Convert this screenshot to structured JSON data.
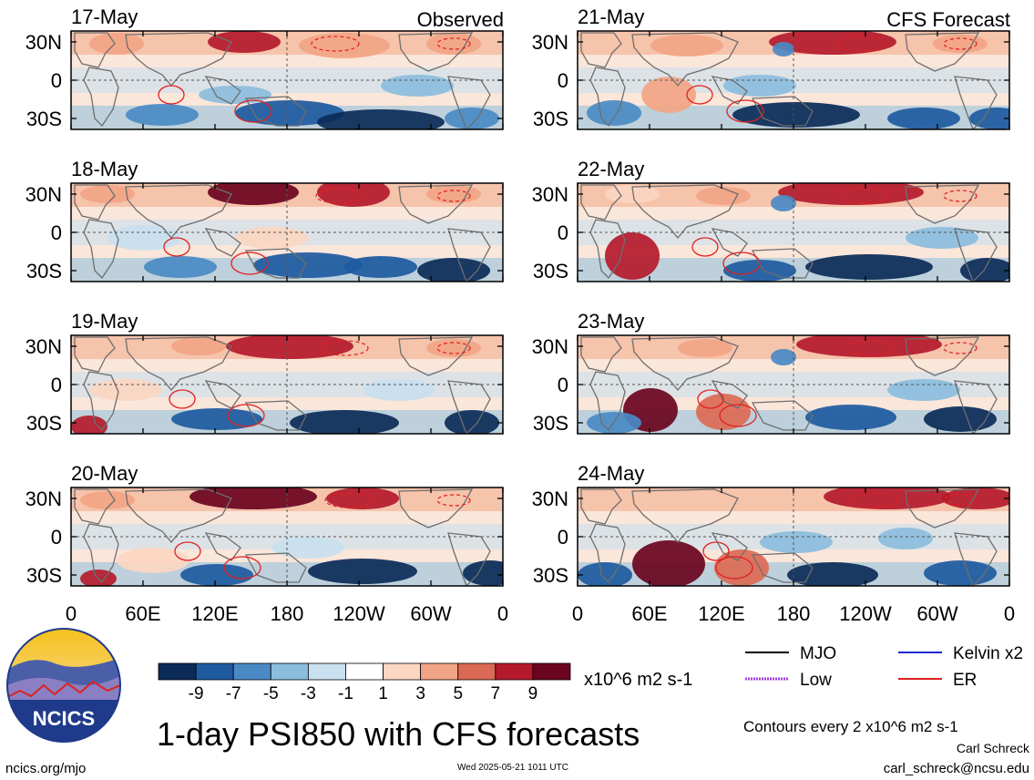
{
  "figure": {
    "title": "1-day PSI850 with CFS forecasts",
    "observed_label": "Observed",
    "forecast_label": "CFS Forecast",
    "left_panels": [
      {
        "date": "17-May"
      },
      {
        "date": "18-May"
      },
      {
        "date": "19-May"
      },
      {
        "date": "20-May"
      }
    ],
    "right_panels": [
      {
        "date": "21-May"
      },
      {
        "date": "22-May"
      },
      {
        "date": "23-May"
      },
      {
        "date": "24-May"
      }
    ],
    "lat_ticks": [
      "30N",
      "0",
      "30S"
    ],
    "lon_ticks": [
      "0",
      "60E",
      "120E",
      "180",
      "120W",
      "60W",
      "0"
    ]
  },
  "colorbar": {
    "ticks": [
      "-9",
      "-7",
      "-5",
      "-3",
      "-1",
      "1",
      "3",
      "5",
      "7",
      "9"
    ],
    "units": "x10^6 m2 s-1",
    "colors": [
      "#0b2a58",
      "#1e5aa0",
      "#4a8ac4",
      "#8bbddd",
      "#c8e0ef",
      "#ffffff",
      "#fbd6c2",
      "#f2a585",
      "#db6a55",
      "#b41a2c",
      "#6a0420"
    ]
  },
  "legend": {
    "items": [
      {
        "label": "MJO",
        "color": "#000000"
      },
      {
        "label": "Kelvin x2",
        "color": "#1c2bd4"
      },
      {
        "label": "Low",
        "color": "#a13de0"
      },
      {
        "label": "ER",
        "color": "#e02020"
      }
    ],
    "contour_note": "Contours every 2 x10^6 m2 s-1"
  },
  "footer": {
    "logo_text": "NCICS",
    "url": "ncics.org/mjo",
    "timestamp": "Wed 2025-05-21 1011 UTC",
    "author": "Carl Schreck",
    "email": "carl_schreck@ncsu.edu"
  }
}
